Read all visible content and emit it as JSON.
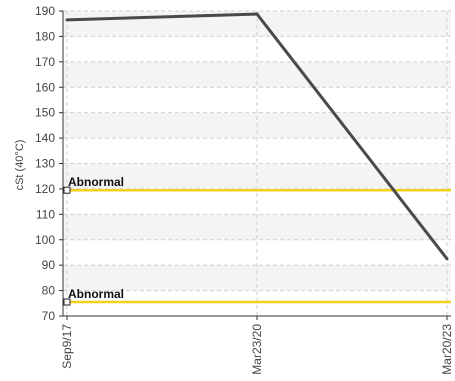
{
  "chart_data": {
    "type": "line",
    "ylabel": "cSt (40°C)",
    "xlabel": "",
    "ylim": [
      70,
      190
    ],
    "yticks": [
      70,
      80,
      90,
      100,
      110,
      120,
      130,
      140,
      150,
      160,
      170,
      180,
      190
    ],
    "categories": [
      "Sep9/17",
      "Mar23/20",
      "Mar20/23"
    ],
    "series": [
      {
        "values": [
          186.5,
          188.8,
          92.5
        ],
        "color": "#4a4a4a"
      }
    ],
    "thresholds": [
      {
        "label": "Abnormal",
        "value": 119.5,
        "color": "#f2d21a"
      },
      {
        "label": "Abnormal",
        "value": 75.5,
        "color": "#f2d21a"
      }
    ],
    "grid": true,
    "band_color": "#f4f4f4",
    "grid_color": "#cfcfcf",
    "legend": "none"
  }
}
